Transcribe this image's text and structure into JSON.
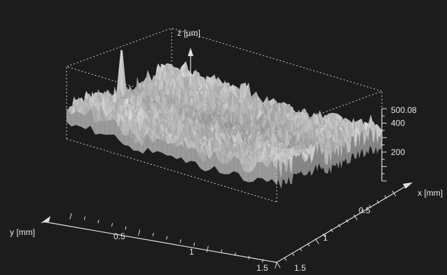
{
  "chart_data": {
    "type": "surface",
    "title": "",
    "z_axis": {
      "label": "z [µm]",
      "ticks": [
        {
          "label": "200",
          "value": 200
        },
        {
          "label": "400",
          "value": 400
        },
        {
          "label": "500.08",
          "value": 500.08
        }
      ],
      "max": 500.08
    },
    "x_axis": {
      "label": "x [mm]",
      "range": [
        0,
        1.5
      ],
      "ticks": [
        {
          "label": "0.5",
          "value": 0.5
        },
        {
          "label": "1",
          "value": 1
        },
        {
          "label": "1.5",
          "value": 1.5
        }
      ]
    },
    "y_axis": {
      "label": "y [mm]",
      "range": [
        0,
        1.5
      ],
      "ticks": [
        {
          "label": "0.5",
          "value": 0.5
        },
        {
          "label": "1",
          "value": 1
        },
        {
          "label": "1.5",
          "value": 1.5
        }
      ]
    },
    "colors": {
      "background": "#1c1c1c",
      "surface": "#b4b4b4",
      "axes": "#e0e0e0"
    }
  }
}
